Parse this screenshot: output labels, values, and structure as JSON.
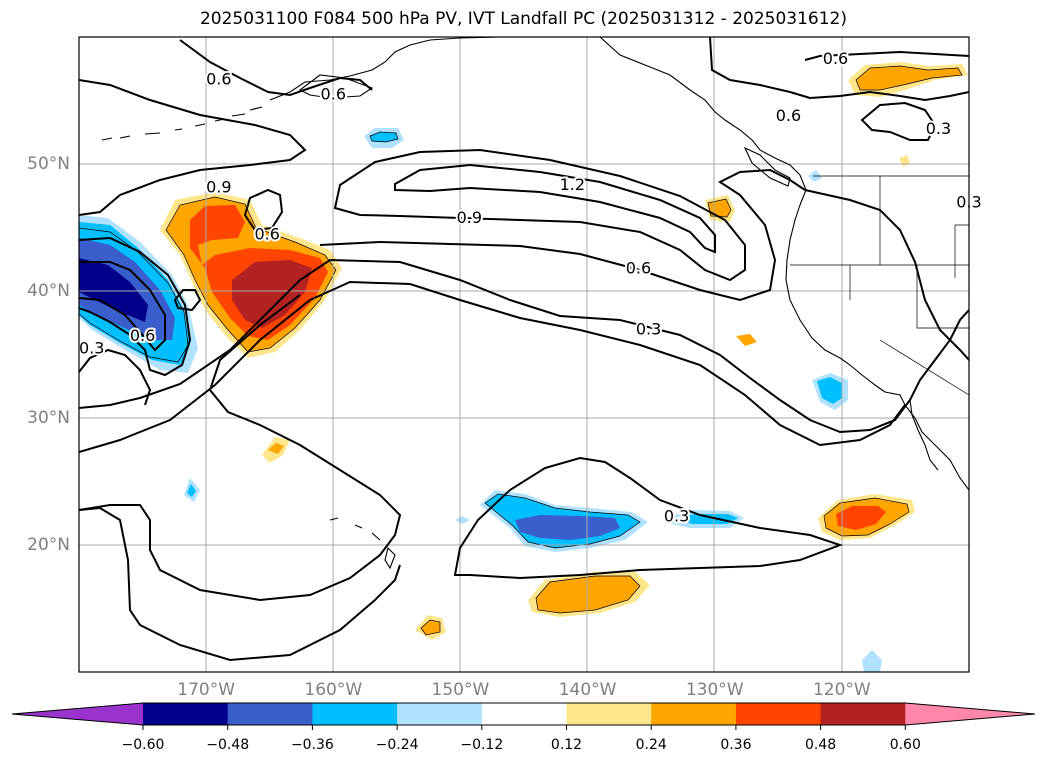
{
  "title": "2025031100 F084 500 hPa PV, IVT Landfall PC (2025031312 - 2025031612)",
  "map": {
    "lon_range": [
      -180,
      -110
    ],
    "lat_range": [
      10,
      60
    ],
    "lon_ticks": [
      {
        "value": -170,
        "label": "170°W"
      },
      {
        "value": -160,
        "label": "160°W"
      },
      {
        "value": -150,
        "label": "150°W"
      },
      {
        "value": -140,
        "label": "140°W"
      },
      {
        "value": -130,
        "label": "130°W"
      },
      {
        "value": -120,
        "label": "120°W"
      }
    ],
    "lat_ticks": [
      {
        "value": 20,
        "label": "20°N"
      },
      {
        "value": 30,
        "label": "30°N"
      },
      {
        "value": 40,
        "label": "40°N"
      },
      {
        "value": 50,
        "label": "50°N"
      }
    ],
    "grid": true,
    "tick_label_color": "#808080"
  },
  "contour_labels": [
    {
      "text": "0.6",
      "lon": -169.0,
      "lat": 56.7
    },
    {
      "text": "0.6",
      "lon": -160.0,
      "lat": 55.5
    },
    {
      "text": "0.6",
      "lon": -120.5,
      "lat": 58.3
    },
    {
      "text": "0.6",
      "lon": -124.2,
      "lat": 53.8
    },
    {
      "text": "0.3",
      "lon": -112.4,
      "lat": 52.8
    },
    {
      "text": "0.9",
      "lon": -169.0,
      "lat": 48.2
    },
    {
      "text": "1.2",
      "lon": -141.2,
      "lat": 48.4
    },
    {
      "text": "0.9",
      "lon": -149.3,
      "lat": 45.8
    },
    {
      "text": "0.6",
      "lon": -165.2,
      "lat": 44.5
    },
    {
      "text": "0.6",
      "lon": -136.0,
      "lat": 41.8
    },
    {
      "text": "0.3",
      "lon": -135.2,
      "lat": 37.0
    },
    {
      "text": "0.6",
      "lon": -175.0,
      "lat": 36.5
    },
    {
      "text": "0.3",
      "lon": -179.0,
      "lat": 35.5
    },
    {
      "text": "0.3",
      "lon": -133.0,
      "lat": 22.3
    },
    {
      "text": "0.3",
      "lon": -110.0,
      "lat": 47.0
    }
  ],
  "colorbar": {
    "colors": [
      "#9933cc",
      "#00008b",
      "#3a5fcd",
      "#00bfff",
      "#b0e2ff",
      "#ffffff",
      "#ffe68c",
      "#ffa500",
      "#ff4500",
      "#b22222",
      "#ff88aa"
    ],
    "tick_labels": [
      "−0.60",
      "−0.48",
      "−0.36",
      "−0.24",
      "−0.12",
      "0.12",
      "0.24",
      "0.36",
      "0.48",
      "0.60"
    ]
  },
  "palette": {
    "pos_light": "#ffe68c",
    "pos_orange": "#ffa500",
    "pos_redorange": "#ff4500",
    "pos_brick": "#b22222",
    "neg_light": "#b0e2ff",
    "neg_sky": "#00bfff",
    "neg_royal": "#3a5fcd",
    "neg_navy": "#00008b"
  }
}
